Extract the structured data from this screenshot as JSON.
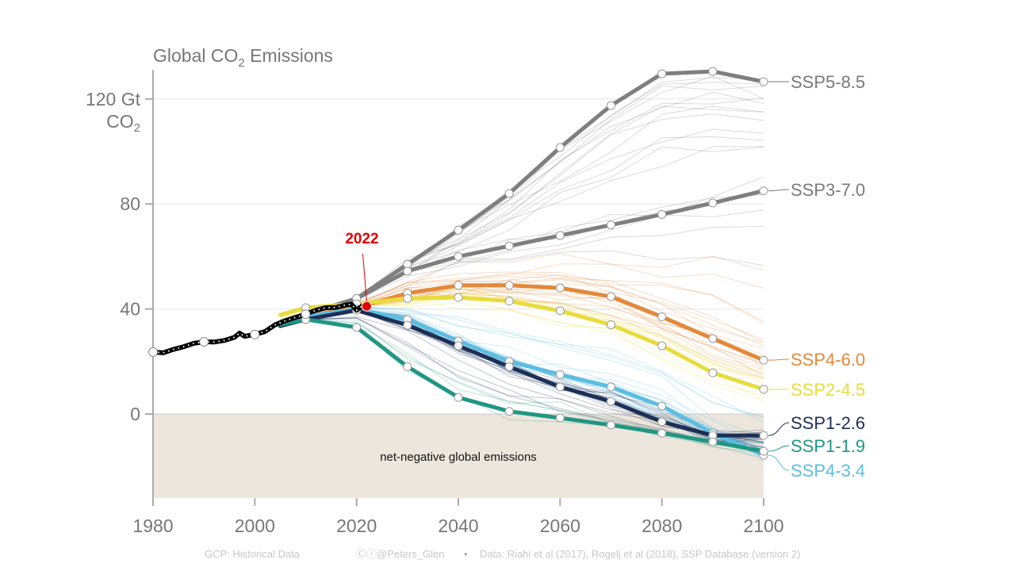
{
  "chart_data": {
    "type": "line",
    "title_parts": [
      "Global CO",
      "2",
      " Emissions"
    ],
    "xlabel": "",
    "ylabel": "",
    "xlim": [
      1980,
      2100
    ],
    "ylim": [
      -32,
      131
    ],
    "x_ticks": [
      1980,
      2000,
      2020,
      2040,
      2060,
      2080,
      2100
    ],
    "y_ticks": [
      0,
      40,
      80,
      120
    ],
    "y_unit_parts": [
      "Gt",
      "CO",
      "2"
    ],
    "grid": "horizontal",
    "shaded_region": {
      "label": "net-negative global emissions",
      "color": "#ede6dc",
      "y_range": [
        -32,
        0
      ]
    },
    "annotation": {
      "label": "2022",
      "x": 2022,
      "y": 41,
      "color": "#e00000"
    },
    "historical": {
      "name": "GCP: Historical Data",
      "color": "#000000",
      "x": [
        1980,
        1982,
        1984,
        1986,
        1988,
        1990,
        1992,
        1994,
        1996,
        1997,
        1998,
        2000,
        2002,
        2004,
        2006,
        2008,
        2010,
        2012,
        2014,
        2016,
        2018,
        2019,
        2020,
        2021,
        2022
      ],
      "y": [
        23.6,
        23.3,
        24.6,
        25.6,
        26.9,
        27.5,
        27.4,
        28.0,
        29.2,
        30.8,
        29.6,
        30.3,
        31.4,
        34.0,
        35.5,
        36.8,
        38.0,
        39.5,
        40.5,
        40.6,
        41.6,
        41.8,
        39.5,
        41.0,
        41.0
      ]
    },
    "series": [
      {
        "name": "SSP5-8.5",
        "color": "#7f7f7f",
        "label_color": "#7a7a7a",
        "x": [
          2005,
          2010,
          2020,
          2030,
          2040,
          2050,
          2060,
          2070,
          2080,
          2090,
          2100
        ],
        "y": [
          35,
          38,
          44,
          57,
          70,
          84,
          101.5,
          117.5,
          129.6,
          130.5,
          126.6
        ]
      },
      {
        "name": "SSP3-7.0",
        "color": "#7f7f7f",
        "label_color": "#7a7a7a",
        "x": [
          2005,
          2010,
          2020,
          2030,
          2040,
          2050,
          2060,
          2070,
          2080,
          2090,
          2100
        ],
        "y": [
          35,
          38,
          44,
          54.4,
          60,
          64,
          68,
          72,
          76,
          80.4,
          85
        ]
      },
      {
        "name": "SSP4-6.0",
        "color": "#e4883a",
        "label_color": "#e4883a",
        "x": [
          2005,
          2010,
          2020,
          2030,
          2040,
          2050,
          2060,
          2070,
          2080,
          2090,
          2100
        ],
        "y": [
          34,
          37,
          40.5,
          46,
          49,
          49,
          48,
          44.7,
          37,
          28.7,
          20.5
        ]
      },
      {
        "name": "SSP2-4.5",
        "color": "#e8dc3c",
        "label_color": "#e8dc3c",
        "x": [
          2005,
          2010,
          2020,
          2030,
          2040,
          2050,
          2060,
          2070,
          2080,
          2090,
          2100
        ],
        "y": [
          37.8,
          40.5,
          42,
          44,
          44.4,
          43,
          39.3,
          34,
          26,
          15.7,
          9.4
        ]
      },
      {
        "name": "SSP4-3.4",
        "color": "#5bbde3",
        "label_color": "#5bbde3",
        "x": [
          2005,
          2010,
          2020,
          2030,
          2040,
          2050,
          2060,
          2070,
          2080,
          2090,
          2100
        ],
        "y": [
          34,
          37,
          40,
          36,
          27.8,
          20,
          15,
          10.3,
          3,
          -7.3,
          -15.7
        ]
      },
      {
        "name": "SSP1-2.6",
        "color": "#1d2f55",
        "label_color": "#1d2f55",
        "x": [
          2005,
          2010,
          2020,
          2030,
          2040,
          2050,
          2060,
          2070,
          2080,
          2090,
          2100
        ],
        "y": [
          33.5,
          36,
          39.5,
          33.8,
          26,
          18,
          10.3,
          4.8,
          -3,
          -8.2,
          -8.2
        ]
      },
      {
        "name": "SSP1-1.9",
        "color": "#1f9783",
        "label_color": "#1f9783",
        "x": [
          2005,
          2010,
          2020,
          2030,
          2040,
          2050,
          2060,
          2070,
          2080,
          2090,
          2100
        ],
        "y": [
          34,
          36,
          33,
          18,
          6.3,
          1,
          -1.5,
          -4.2,
          -7.3,
          -10.6,
          -14.2
        ]
      }
    ],
    "footer": {
      "source_left": "GCP: Historical Data",
      "credit": "Ⓒⓘ@Peters_Glen",
      "bullet": "•",
      "source_right": "Data: Riahi et al (2017), Rogelj et al (2018), SSP Database (version 2)"
    }
  }
}
